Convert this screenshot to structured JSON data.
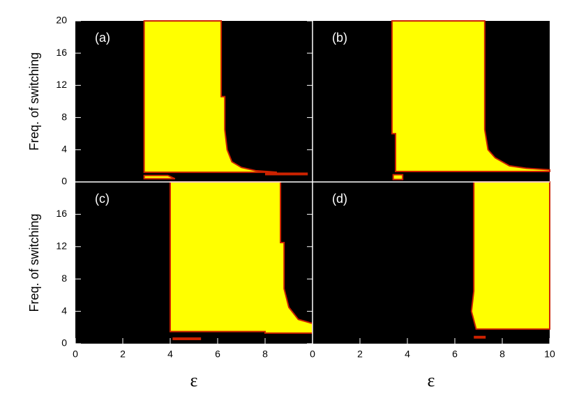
{
  "chart_data": [
    {
      "type": "region",
      "label": "(a)",
      "y_label": "Freq. of switching",
      "xlim": [
        0,
        10
      ],
      "ylim": [
        0,
        20
      ],
      "yticks": [
        0,
        4,
        8,
        12,
        16,
        20
      ],
      "color": "#ffff00",
      "edge_color": "#cc2200",
      "regions": [
        {
          "x": [
            2.9,
            6.15,
            6.15,
            6.3,
            6.3,
            6.4,
            6.6,
            7,
            7.6,
            8.5,
            2.9
          ],
          "y": [
            20,
            20,
            10.6,
            10.6,
            6.5,
            4,
            2.5,
            1.8,
            1.4,
            1.2,
            1.2
          ]
        },
        {
          "x": [
            2.9,
            3.9,
            4.2,
            2.9
          ],
          "y": [
            0.8,
            0.8,
            0.4,
            0.4
          ]
        }
      ],
      "segments": [
        {
          "x": [
            8,
            9.8
          ],
          "y": [
            1,
            1
          ]
        }
      ]
    },
    {
      "type": "region",
      "label": "(b)",
      "xlim": [
        0,
        10
      ],
      "ylim": [
        0,
        20
      ],
      "color": "#ffff00",
      "edge_color": "#cc2200",
      "regions": [
        {
          "x": [
            3.35,
            7.26,
            7.26,
            7.4,
            7.7,
            8.3,
            9,
            10,
            10,
            3.5,
            3.5,
            3.35
          ],
          "y": [
            20,
            20,
            6.5,
            4,
            3,
            2,
            1.7,
            1.5,
            1.3,
            1.3,
            6,
            6
          ]
        },
        {
          "x": [
            3.4,
            3.8,
            3.8,
            3.4
          ],
          "y": [
            0.9,
            0.9,
            0.3,
            0.3
          ]
        }
      ],
      "segments": []
    },
    {
      "type": "region",
      "label": "(c)",
      "y_label": "Freq. of switching",
      "x_label": "ε",
      "xlim": [
        0,
        10
      ],
      "ylim": [
        0,
        20
      ],
      "yticks": [
        0,
        4,
        8,
        12,
        16
      ],
      "xticks": [
        0,
        2,
        4,
        6,
        8
      ],
      "color": "#ffff00",
      "edge_color": "#cc2200",
      "regions": [
        {
          "x": [
            4,
            8.65,
            8.65,
            8.8,
            8.8,
            9,
            9.4,
            10,
            10,
            8,
            8,
            4
          ],
          "y": [
            20,
            20,
            12.5,
            12.5,
            6.8,
            4.5,
            3,
            2.5,
            1.3,
            1.3,
            1.5,
            1.5
          ]
        }
      ],
      "segments": [
        {
          "x": [
            4.1,
            5.3
          ],
          "y": [
            0.6,
            0.6
          ]
        }
      ]
    },
    {
      "type": "region",
      "label": "(d)",
      "x_label": "ε",
      "xlim": [
        0,
        10
      ],
      "ylim": [
        0,
        20
      ],
      "xticks": [
        0,
        2,
        4,
        6,
        8,
        10
      ],
      "color": "#ffff00",
      "edge_color": "#cc2200",
      "regions": [
        {
          "x": [
            6.8,
            10,
            10,
            6.9,
            6.7,
            6.8
          ],
          "y": [
            20,
            20,
            1.8,
            1.8,
            4,
            6.5
          ]
        }
      ],
      "segments": [
        {
          "x": [
            6.8,
            7.3
          ],
          "y": [
            0.8,
            0.8
          ]
        }
      ]
    }
  ]
}
